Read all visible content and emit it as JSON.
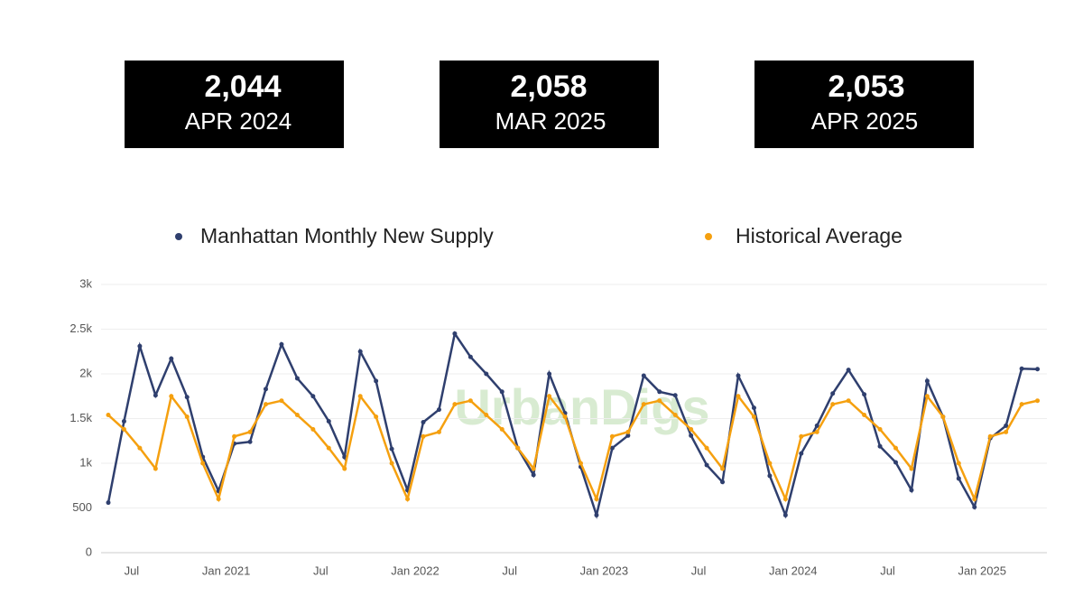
{
  "kpis": [
    {
      "value": "2,044",
      "label": "APR 2024"
    },
    {
      "value": "2,058",
      "label": "MAR 2025"
    },
    {
      "value": "2,053",
      "label": "APR 2025"
    }
  ],
  "chart_data": {
    "type": "line",
    "watermark": "UrbanDigs",
    "categories": [
      null,
      null,
      "Jul",
      null,
      null,
      null,
      null,
      null,
      "Jan 2021",
      null,
      null,
      null,
      null,
      null,
      "Jul",
      null,
      null,
      null,
      null,
      null,
      "Jan 2022",
      null,
      null,
      null,
      null,
      null,
      "Jul",
      null,
      null,
      null,
      null,
      null,
      "Jan 2023",
      null,
      null,
      null,
      null,
      null,
      "Jul",
      null,
      null,
      null,
      null,
      null,
      "Jan 2024",
      null,
      null,
      null,
      null,
      null,
      "Jul",
      null,
      null,
      null,
      null,
      null,
      "Jan 2025",
      null,
      null,
      null
    ],
    "series": [
      {
        "name": "Manhattan Monthly New Supply",
        "color": "#2f3f6e",
        "values": [
          560,
          1470,
          2310,
          1760,
          2170,
          1740,
          1070,
          690,
          1220,
          1240,
          1830,
          2330,
          1950,
          1750,
          1470,
          1070,
          2250,
          1920,
          1160,
          700,
          1460,
          1600,
          2450,
          2190,
          2000,
          1800,
          1170,
          870,
          2000,
          1560,
          960,
          420,
          1170,
          1310,
          1980,
          1800,
          1760,
          1310,
          980,
          790,
          1980,
          1620,
          860,
          420,
          1110,
          1420,
          1780,
          2044,
          1770,
          1190,
          1010,
          700,
          1920,
          1520,
          830,
          510,
          1280,
          1420,
          2058,
          2053
        ]
      },
      {
        "name": "Historical Average",
        "color": "#f5a00f",
        "values": [
          1540,
          1380,
          1170,
          940,
          1750,
          1520,
          1000,
          600,
          1300,
          1350,
          1660,
          1700,
          1540,
          1380,
          1170,
          940,
          1750,
          1520,
          1000,
          600,
          1300,
          1350,
          1660,
          1700,
          1540,
          1380,
          1170,
          940,
          1750,
          1520,
          1000,
          600,
          1300,
          1350,
          1660,
          1700,
          1540,
          1380,
          1170,
          940,
          1750,
          1520,
          1000,
          600,
          1300,
          1350,
          1660,
          1700,
          1540,
          1380,
          1170,
          940,
          1750,
          1520,
          1000,
          600,
          1300,
          1350,
          1660,
          1700
        ]
      }
    ],
    "ylim": [
      0,
      3000
    ],
    "yticks": [
      0,
      500,
      {
        "value": 1000,
        "label": "1k"
      },
      {
        "value": 1500,
        "label": "1.5k"
      },
      {
        "value": 2000,
        "label": "2k"
      },
      {
        "value": 2500,
        "label": "2.5k"
      },
      {
        "value": 3000,
        "label": "3k"
      }
    ],
    "grid": true
  }
}
